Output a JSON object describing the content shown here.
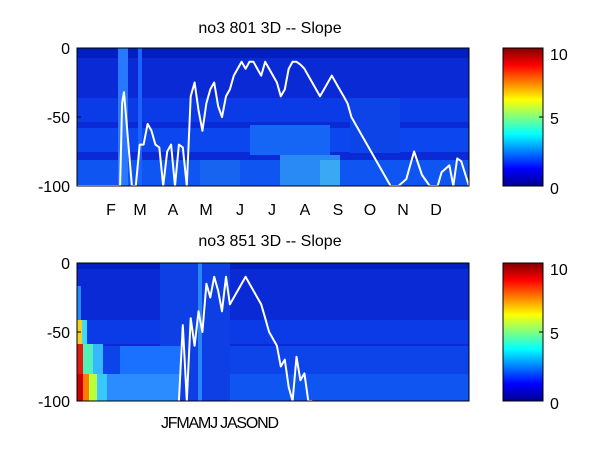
{
  "chart_data": [
    {
      "type": "heatmap",
      "title": "no3  801 3D   -- Slope",
      "ylim": [
        -100,
        0
      ],
      "y_ticks": [
        "0",
        "-50",
        "-100"
      ],
      "x_tick_labels": [
        "F",
        "M",
        "A",
        "M",
        "J",
        "J",
        "A",
        "S",
        "O",
        "N",
        "D"
      ],
      "colorbar": {
        "range": [
          0,
          10
        ],
        "ticks": [
          "10",
          "5",
          "0"
        ],
        "colormap": "jet"
      },
      "overlay_line_color": "#ffffff",
      "overlay_line": {
        "x": [
          0,
          9,
          10,
          11,
          11.5,
          12,
          14,
          15,
          16,
          17,
          18,
          19,
          20,
          21,
          22,
          23,
          24,
          25,
          26,
          27,
          28,
          29,
          30,
          31,
          32,
          33,
          34,
          35,
          36,
          37,
          38,
          39,
          40,
          41,
          42,
          43,
          44,
          45,
          46,
          47,
          48,
          49,
          50,
          51,
          52,
          53,
          54,
          55,
          56,
          57,
          58,
          59,
          60,
          61,
          62,
          63,
          64,
          65,
          66,
          67,
          68,
          69,
          70,
          72,
          74,
          76,
          78,
          80,
          82,
          84,
          86,
          88,
          90,
          92,
          93,
          95,
          96,
          97,
          98,
          100
        ],
        "y": [
          -100,
          -100,
          -100,
          -100,
          -40,
          -32,
          -100,
          -100,
          -70,
          -70,
          -55,
          -60,
          -70,
          -72,
          -100,
          -75,
          -70,
          -100,
          -70,
          -72,
          -100,
          -35,
          -25,
          -45,
          -60,
          -40,
          -30,
          -25,
          -42,
          -50,
          -35,
          -30,
          -20,
          -15,
          -10,
          -15,
          -10,
          -10,
          -15,
          -20,
          -10,
          -15,
          -20,
          -25,
          -35,
          -30,
          -15,
          -10,
          -10,
          -12,
          -15,
          -20,
          -25,
          -30,
          -35,
          -30,
          -25,
          -20,
          -25,
          -30,
          -35,
          -40,
          -50,
          -60,
          -70,
          -80,
          -90,
          -100,
          -100,
          -95,
          -75,
          -92,
          -100,
          -100,
          -90,
          -85,
          -100,
          -80,
          -82,
          -100
        ]
      }
    },
    {
      "type": "heatmap",
      "title": "no3  851 3D   -- Slope",
      "ylim": [
        -100,
        0
      ],
      "y_ticks": [
        "0",
        "-50",
        "-100"
      ],
      "x_tick_labels": [
        "JFMAMJ JASOND"
      ],
      "colorbar": {
        "range": [
          0,
          10
        ],
        "ticks": [
          "10",
          "5",
          "0"
        ],
        "colormap": "jet"
      },
      "overlay_line_color": "#ffffff",
      "overlay_line": {
        "x": [
          26,
          27,
          27.5,
          28,
          29,
          30,
          31,
          32,
          33,
          34,
          35,
          36,
          37,
          38,
          39,
          40,
          41,
          42,
          43,
          44,
          45,
          46,
          47,
          48,
          49,
          50,
          51,
          52,
          53,
          54,
          55,
          56,
          57,
          58,
          59,
          60
        ],
        "y": [
          -100,
          -45,
          -72,
          -100,
          -40,
          -60,
          -35,
          -50,
          -15,
          -25,
          -10,
          -20,
          -35,
          -10,
          -30,
          -25,
          -20,
          -15,
          -10,
          -15,
          -20,
          -25,
          -30,
          -40,
          -50,
          -55,
          -60,
          -75,
          -70,
          -90,
          -100,
          -68,
          -85,
          -80,
          -100,
          -100
        ]
      }
    }
  ]
}
